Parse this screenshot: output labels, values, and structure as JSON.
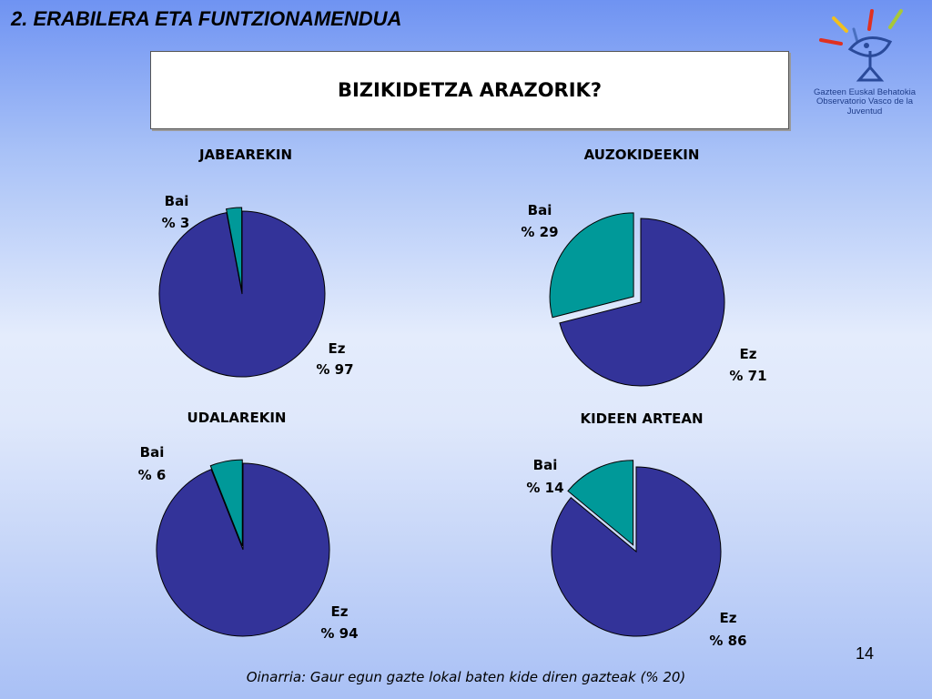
{
  "header": {
    "section_title": "2. ERABILERA ETA FUNTZIONAMENDUA",
    "main_title": "BIZIKIDETZA ARAZORIK?"
  },
  "logo": {
    "line1": "Gazteen Euskal Behatokia",
    "line2": "Observatorio Vasco de la Juventud"
  },
  "colors": {
    "ez": "#333399",
    "bai": "#009999"
  },
  "chart_data": [
    {
      "type": "pie",
      "title": "JABEAREKIN",
      "slices": [
        {
          "name": "Bai",
          "value": 3,
          "label": "% 3"
        },
        {
          "name": "Ez",
          "value": 97,
          "label": "% 97"
        }
      ]
    },
    {
      "type": "pie",
      "title": "AUZOKIDEEKIN",
      "slices": [
        {
          "name": "Bai",
          "value": 29,
          "label": "% 29"
        },
        {
          "name": "Ez",
          "value": 71,
          "label": "% 71"
        }
      ]
    },
    {
      "type": "pie",
      "title": "UDALAREKIN",
      "slices": [
        {
          "name": "Bai",
          "value": 6,
          "label": "% 6"
        },
        {
          "name": "Ez",
          "value": 94,
          "label": "% 94"
        }
      ]
    },
    {
      "type": "pie",
      "title": "KIDEEN ARTEAN",
      "slices": [
        {
          "name": "Bai",
          "value": 14,
          "label": "% 14"
        },
        {
          "name": "Ez",
          "value": 86,
          "label": "% 86"
        }
      ]
    }
  ],
  "page_number": "14",
  "footnote": "Oinarria: Gaur egun gazte lokal baten kide diren gazteak (% 20)"
}
